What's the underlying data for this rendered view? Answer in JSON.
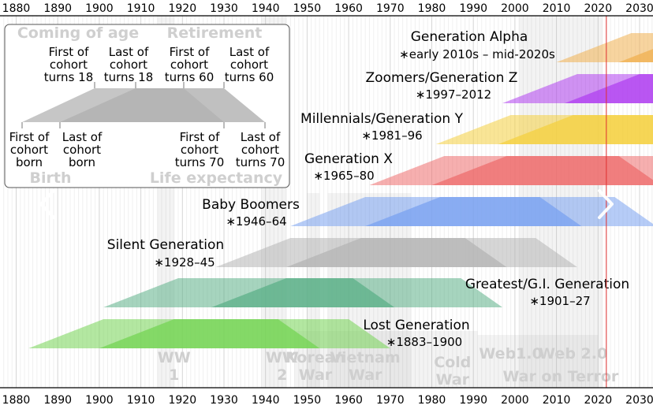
{
  "chart_data": {
    "type": "area",
    "x_axis": {
      "min": 1874,
      "max": 2038,
      "ticks": [
        1880,
        1890,
        1900,
        1910,
        1920,
        1930,
        1940,
        1950,
        1960,
        1970,
        1980,
        1990,
        2000,
        2010,
        2020,
        2030
      ]
    },
    "current_year_marker": 2022,
    "life_expectancy_years": 70,
    "generations": [
      {
        "name": "Generation Alpha",
        "years": "∗early 2010s – mid-2020s",
        "start": 2010,
        "end": 2025,
        "color": "#f0b050"
      },
      {
        "name": "Zoomers/Generation Z",
        "years": "∗1997–2012",
        "start": 1997,
        "end": 2012,
        "color": "#b040f0"
      },
      {
        "name": "Millennials/Generation Y",
        "years": "∗1981–96",
        "start": 1981,
        "end": 1996,
        "color": "#f4d040"
      },
      {
        "name": "Generation X",
        "years": "∗1965–80",
        "start": 1965,
        "end": 1980,
        "color": "#ee6e6e"
      },
      {
        "name": "Baby Boomers",
        "years": "∗1946–64",
        "start": 1946,
        "end": 1964,
        "color": "#7aa2f0"
      },
      {
        "name": "Silent Generation",
        "years": "∗1928–45",
        "start": 1928,
        "end": 1945,
        "color": "#b4b4b4"
      },
      {
        "name": "Greatest/G.I. Generation",
        "years": "∗1901–27",
        "start": 1901,
        "end": 1927,
        "color": "#5cb088"
      },
      {
        "name": "Lost Generation",
        "years": "∗1883–1900",
        "start": 1883,
        "end": 1900,
        "color": "#74d454"
      }
    ],
    "events": [
      {
        "label_lines": [
          "WW",
          "1"
        ],
        "start": 1914,
        "end": 1918
      },
      {
        "label_lines": [
          "WW",
          "2"
        ],
        "start": 1939,
        "end": 1945
      },
      {
        "label_lines": [
          "Korean",
          "War"
        ],
        "start": 1950,
        "end": 1953
      },
      {
        "label_lines": [
          "Vietnam",
          "War"
        ],
        "start": 1955,
        "end": 1975
      },
      {
        "label_lines": [
          "Cold",
          "War"
        ],
        "start": 1947,
        "end": 1991
      },
      {
        "label_lines": [
          "Web1.0"
        ],
        "start": 1991,
        "end": 2004
      },
      {
        "label_lines": [
          "Web 2.0"
        ],
        "start": 2004,
        "end": 2020
      },
      {
        "label_lines": [
          "War on Terror"
        ],
        "start": 2001,
        "end": 2021
      }
    ]
  },
  "legend": {
    "coming_of_age": "Coming of age",
    "retirement": "Retirement",
    "birth": "Birth",
    "life_expectancy": "Life expectancy",
    "top_labels": [
      [
        "First of",
        "cohort",
        "turns 18"
      ],
      [
        "Last of",
        "cohort",
        "turns 18"
      ],
      [
        "First of",
        "cohort",
        "turns 60"
      ],
      [
        "Last of",
        "cohort",
        "turns 60"
      ]
    ],
    "bottom_labels": [
      [
        "First of",
        "cohort",
        "born"
      ],
      [
        "Last of",
        "cohort",
        "born"
      ],
      [
        "First of",
        "cohort",
        "turns 70"
      ],
      [
        "Last of",
        "cohort",
        "turns 70"
      ]
    ]
  },
  "navigation": {
    "previous_icon": "chevron-left-icon",
    "next_icon": "chevron-right-icon"
  }
}
